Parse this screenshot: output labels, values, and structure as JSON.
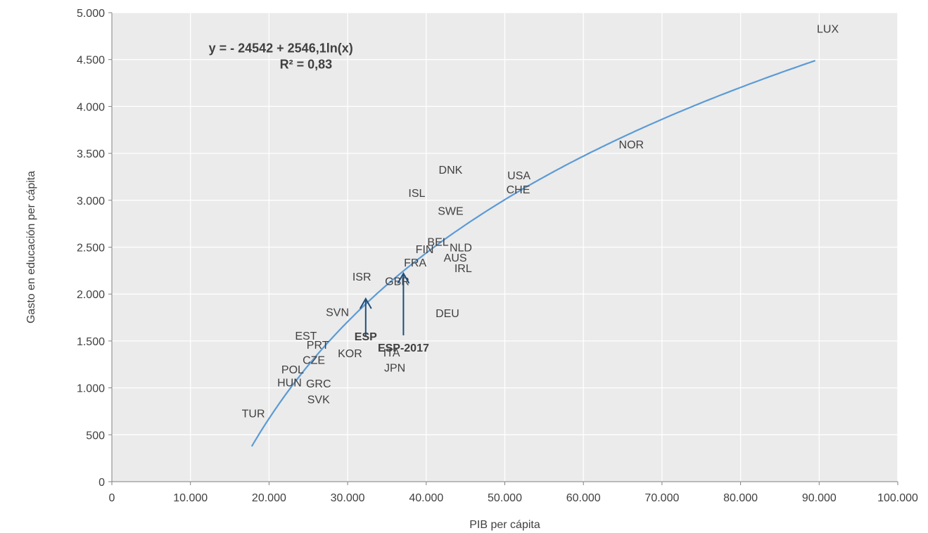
{
  "chart_data": {
    "type": "scatter",
    "title": "",
    "xlabel": "PIB per cápita",
    "ylabel": "Gasto en educación per cápita",
    "xlim": [
      0,
      100000
    ],
    "ylim": [
      0,
      5000
    ],
    "x_ticks": [
      0,
      10000,
      20000,
      30000,
      40000,
      50000,
      60000,
      70000,
      80000,
      90000,
      100000
    ],
    "y_ticks": [
      0,
      500,
      1000,
      1500,
      2000,
      2500,
      3000,
      3500,
      4000,
      4500,
      5000
    ],
    "x_tick_labels": [
      "0",
      "10.000",
      "20.000",
      "30.000",
      "40.000",
      "50.000",
      "60.000",
      "70.000",
      "80.000",
      "90.000",
      "100.000"
    ],
    "y_tick_labels": [
      "0",
      "500",
      "1.000",
      "1.500",
      "2.000",
      "2.500",
      "3.000",
      "3.500",
      "4.000",
      "4.500",
      "5.000"
    ],
    "grid": true,
    "colors": {
      "plot_bg": "#ebebeb",
      "grid": "#ffffff",
      "trend": "#5b9bd5",
      "arrow": "#1f4e79",
      "text": "#404040"
    },
    "points": [
      {
        "label": "LUX",
        "x": 91100,
        "y": 4830
      },
      {
        "label": "NOR",
        "x": 66100,
        "y": 3600
      },
      {
        "label": "DNK",
        "x": 43100,
        "y": 3330
      },
      {
        "label": "USA",
        "x": 51800,
        "y": 3270
      },
      {
        "label": "CHE",
        "x": 51700,
        "y": 3120
      },
      {
        "label": "ISL",
        "x": 38800,
        "y": 3080
      },
      {
        "label": "SWE",
        "x": 43100,
        "y": 2890
      },
      {
        "label": "BEL",
        "x": 41500,
        "y": 2560
      },
      {
        "label": "NLD",
        "x": 44400,
        "y": 2500
      },
      {
        "label": "FIN",
        "x": 39800,
        "y": 2480
      },
      {
        "label": "AUS",
        "x": 43700,
        "y": 2390
      },
      {
        "label": "FRA",
        "x": 38600,
        "y": 2340
      },
      {
        "label": "IRL",
        "x": 44700,
        "y": 2280
      },
      {
        "label": "ISR",
        "x": 31800,
        "y": 2190
      },
      {
        "label": "GBR",
        "x": 36300,
        "y": 2140
      },
      {
        "label": "SVN",
        "x": 28700,
        "y": 1810
      },
      {
        "label": "DEU",
        "x": 42700,
        "y": 1800
      },
      {
        "label": "EST",
        "x": 24700,
        "y": 1560
      },
      {
        "label": "PRT",
        "x": 26200,
        "y": 1460
      },
      {
        "label": "KOR",
        "x": 30300,
        "y": 1370
      },
      {
        "label": "ITA",
        "x": 35600,
        "y": 1380
      },
      {
        "label": "CZE",
        "x": 25700,
        "y": 1300
      },
      {
        "label": "JPN",
        "x": 36000,
        "y": 1220
      },
      {
        "label": "POL",
        "x": 23000,
        "y": 1200
      },
      {
        "label": "HUN",
        "x": 22600,
        "y": 1060
      },
      {
        "label": "GRC",
        "x": 26300,
        "y": 1050
      },
      {
        "label": "SVK",
        "x": 26300,
        "y": 880
      },
      {
        "label": "TUR",
        "x": 18000,
        "y": 730
      }
    ],
    "highlights": [
      {
        "label": "ESP",
        "x": 32300,
        "y": 1550,
        "arrow_from": 1550,
        "arrow_to": 1950
      },
      {
        "label": "ESP-2017",
        "x": 37100,
        "y": 1430,
        "arrow_from": 1560,
        "arrow_to": 2220
      }
    ],
    "trendline": {
      "type": "logarithmic",
      "intercept": -24542,
      "coefficient": 2546.1,
      "x_range": [
        17800,
        89500
      ],
      "equation_line1": "y = - 24542 +  2546,1ln(x)",
      "equation_line2": "R² = 0,83"
    }
  }
}
